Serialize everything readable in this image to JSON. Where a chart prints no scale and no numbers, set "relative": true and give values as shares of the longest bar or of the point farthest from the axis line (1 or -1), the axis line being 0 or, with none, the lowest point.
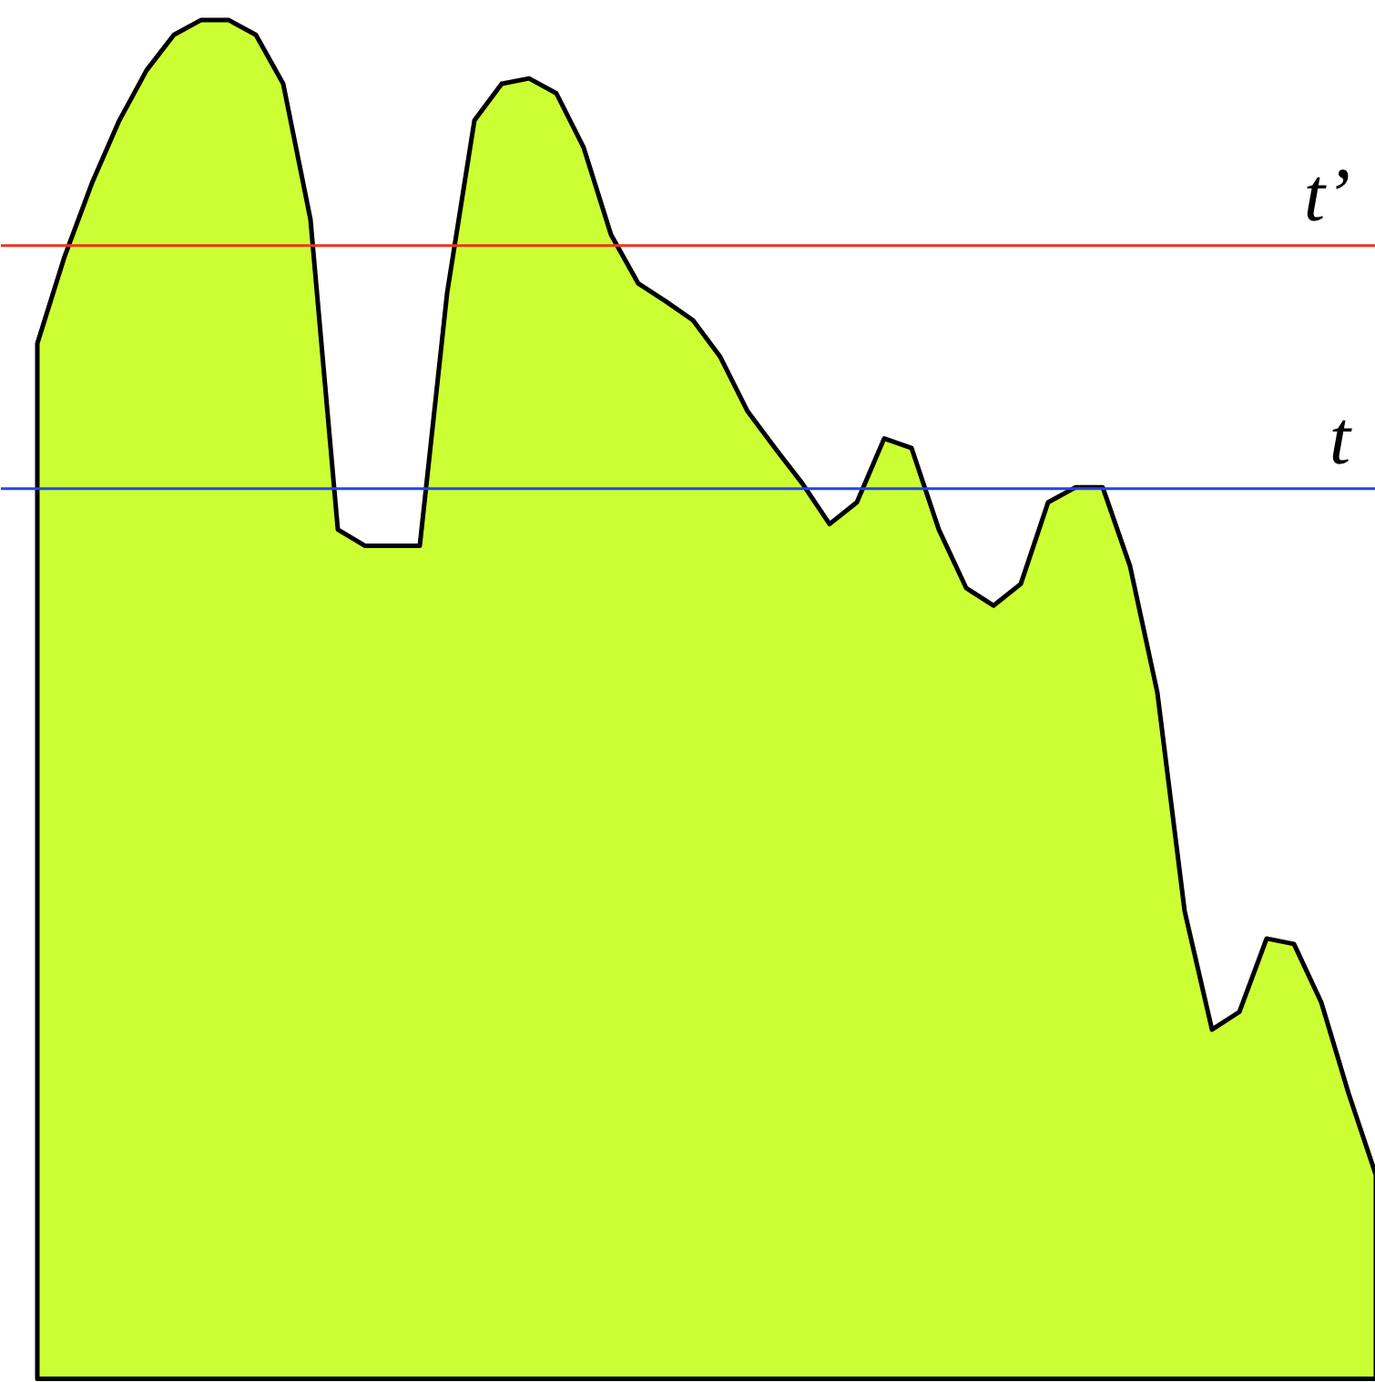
{
  "chart_data": {
    "type": "area",
    "relative": true,
    "color": "#ccff33",
    "categories": [
      null,
      null,
      null,
      null,
      null,
      null,
      null,
      null,
      null,
      null,
      null,
      null,
      null,
      null,
      null,
      null,
      null,
      null,
      null,
      null,
      null,
      null,
      null,
      null,
      null,
      null,
      null,
      null,
      null,
      null,
      null,
      null,
      null,
      null,
      null,
      null,
      null,
      null,
      null,
      null,
      null,
      null,
      null,
      null,
      null,
      null,
      null,
      null,
      null,
      null
    ],
    "values": [
      0.762,
      0.826,
      0.88,
      0.926,
      0.963,
      0.989,
      1,
      1,
      0.989,
      0.953,
      0.853,
      0.625,
      0.613,
      0.613,
      0.613,
      0.799,
      0.926,
      0.953,
      0.957,
      0.946,
      0.906,
      0.842,
      0.806,
      0.793,
      0.779,
      0.752,
      0.712,
      0.685,
      0.659,
      0.629,
      0.645,
      0.692,
      0.685,
      0.625,
      0.582,
      0.569,
      0.585,
      0.645,
      0.656,
      0.656,
      0.598,
      0.505,
      0.344,
      0.257,
      0.27,
      0.324,
      0.32,
      0.277,
      0.21,
      0.15
    ],
    "ref_lines": [
      {
        "axis": "y",
        "value": 0.834,
        "label": "t’",
        "color": "#ee3322"
      },
      {
        "axis": "y",
        "value": 0.655,
        "label": "t",
        "color": "#2244ee"
      }
    ],
    "grid": false
  }
}
